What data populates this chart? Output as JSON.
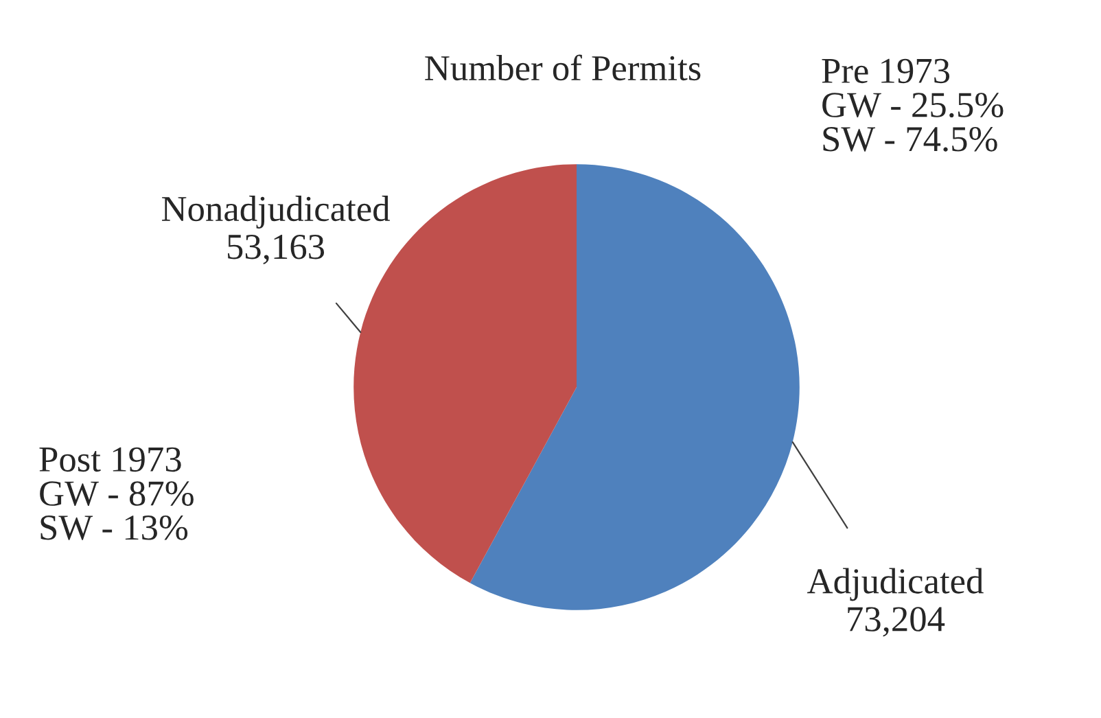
{
  "chart_data": {
    "type": "pie",
    "title": "Number of Permits",
    "categories": [
      "Adjudicated",
      "Nonadjudicated"
    ],
    "values": [
      73204,
      53163
    ],
    "value_labels": [
      "73,204",
      "53,163"
    ],
    "colors": [
      "#4f81bd",
      "#c0504d"
    ],
    "annotations": [
      "Pre 1973\nGW - 25.5%\nSW - 74.5%",
      "Post 1973\nGW - 87%\nSW - 13%"
    ],
    "legend": false
  }
}
